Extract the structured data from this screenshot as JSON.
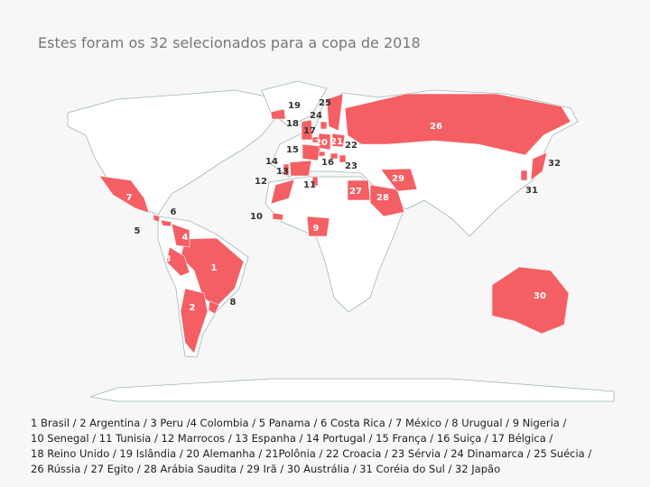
{
  "title": "Estes foram os 32 selecionados para a copa de 2018",
  "markers": [
    "1",
    "2",
    "3",
    "4",
    "5",
    "6",
    "7",
    "8",
    "9",
    "10",
    "11",
    "12",
    "13",
    "14",
    "15",
    "16",
    "17",
    "18",
    "19",
    "20",
    "21",
    "22",
    "23",
    "24",
    "25",
    "26",
    "27",
    "28",
    "29",
    "30",
    "31",
    "32"
  ],
  "legend": {
    "lines": [
      "1 Brasil / 2  Argentina / 3  Peru /4  Colombia / 5 Panama / 6 Costa Rica / 7 México / 8 Urugual / 9 Nigeria /",
      "10 Senegal / 11 Tunisia / 12 Marrocos / 13 Espanha / 14 Portugal / 15 França / 16 Suiça / 17 Bélgica /",
      "18 Reino Unido / 19 Islândia / 20 Alemanha / 21Polônia / 22 Croacia / 23 Sérvia / 24 Dinamarca / 25 Suécia /",
      "26 Rússia / 27 Egito / 28 Arábia Saudita / 29 Irã / 30 Austrália / 31 Coréia do Sul / 32 Japão"
    ]
  }
}
